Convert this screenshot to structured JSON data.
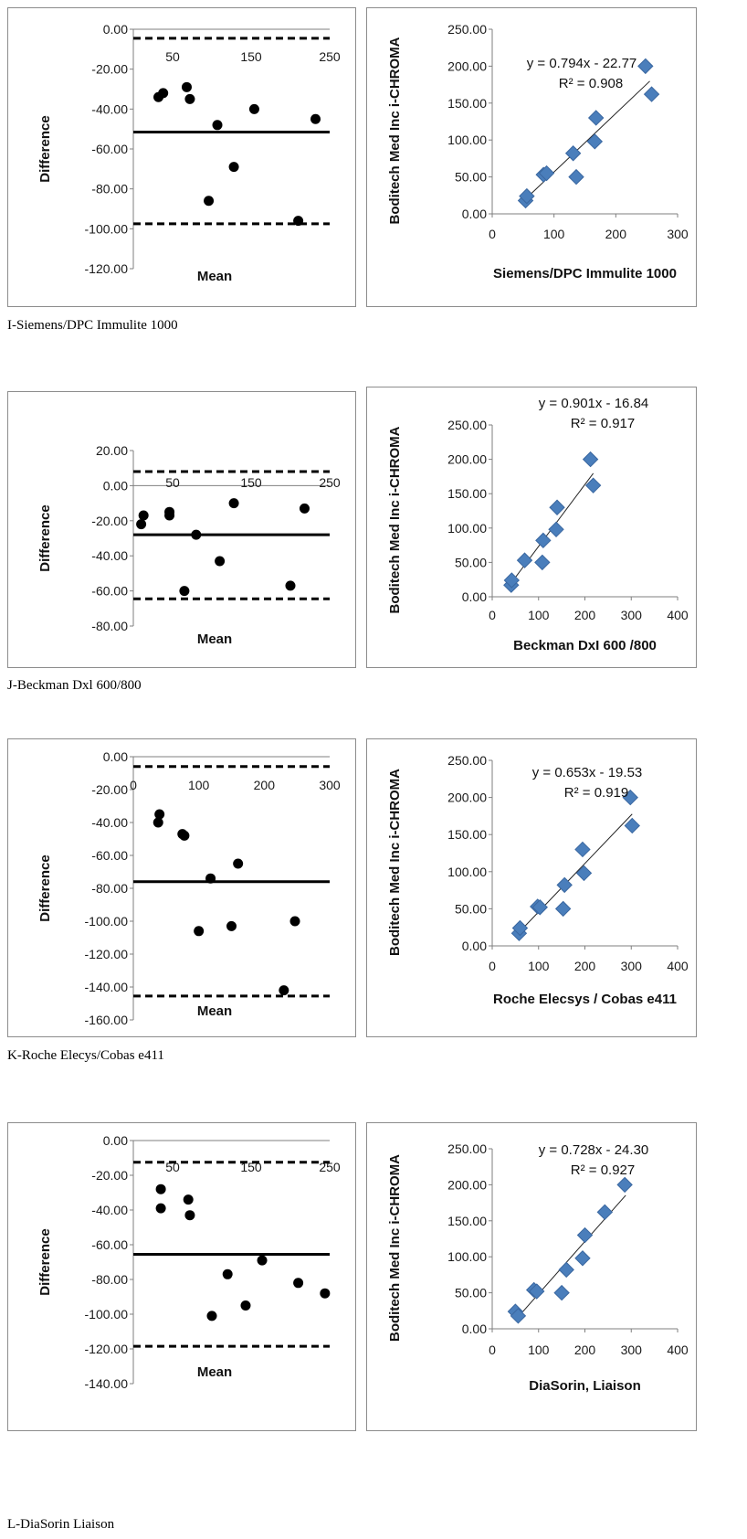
{
  "captions": [
    "I-Siemens/DPC Immulite 1000",
    "J-Beckman Dxl 600/800",
    "K-Roche Elecys/Cobas e411",
    "L-DiaSorin Liaison"
  ],
  "chart_data": [
    {
      "type": "scatter",
      "role": "bland-altman",
      "xlabel": "Mean",
      "ylabel": "Difference",
      "xlim": [
        0,
        250
      ],
      "ylim": [
        -120,
        0
      ],
      "xticks": [
        "50",
        "150",
        "250"
      ],
      "xtick_values": [
        50,
        150,
        250
      ],
      "yticks": [
        "0.00",
        "-20.00",
        "-40.00",
        "-60.00",
        "-80.00",
        "-100.00",
        "-120.00"
      ],
      "ytick_values": [
        0,
        -20,
        -40,
        -60,
        -80,
        -100,
        -120
      ],
      "bias": -51.5,
      "upper_loa": -4.5,
      "lower_loa": -97.5,
      "points": [
        [
          32,
          -34
        ],
        [
          38,
          -32
        ],
        [
          68,
          -29
        ],
        [
          72,
          -35
        ],
        [
          107,
          -48
        ],
        [
          96,
          -86
        ],
        [
          128,
          -69
        ],
        [
          154,
          -40
        ],
        [
          210,
          -96
        ],
        [
          232,
          -45
        ]
      ]
    },
    {
      "type": "scatter",
      "role": "regression",
      "xlabel": "Siemens/DPC Immulite 1000",
      "ylabel": "Boditech Med Inc i-CHROMA",
      "xlim": [
        0,
        300
      ],
      "ylim": [
        0,
        250
      ],
      "xticks": [
        "0",
        "100",
        "200",
        "300"
      ],
      "xtick_values": [
        0,
        100,
        200,
        300
      ],
      "yticks": [
        "0.00",
        "50.00",
        "100.00",
        "150.00",
        "200.00",
        "250.00"
      ],
      "ytick_values": [
        0,
        50,
        100,
        150,
        200,
        250
      ],
      "equation": "y = 0.794x - 22.77",
      "r2": "R² = 0.908",
      "fit": {
        "slope": 0.794,
        "intercept": -22.77,
        "x_range": [
          52,
          255
        ]
      },
      "points": [
        [
          54,
          18
        ],
        [
          56,
          24
        ],
        [
          83,
          53
        ],
        [
          88,
          55
        ],
        [
          136,
          50
        ],
        [
          131,
          82
        ],
        [
          166,
          98
        ],
        [
          168,
          130
        ],
        [
          248,
          200
        ],
        [
          258,
          162
        ]
      ]
    },
    {
      "type": "scatter",
      "role": "bland-altman",
      "xlabel": "Mean",
      "ylabel": "Difference",
      "xlim": [
        0,
        250
      ],
      "ylim": [
        -80,
        20
      ],
      "xticks": [
        "50",
        "150",
        "250"
      ],
      "xtick_values": [
        50,
        150,
        250
      ],
      "yticks": [
        "20.00",
        "0.00",
        "-20.00",
        "-40.00",
        "-60.00",
        "-80.00"
      ],
      "ytick_values": [
        20,
        0,
        -20,
        -40,
        -60,
        -80
      ],
      "bias": -28,
      "upper_loa": 8,
      "lower_loa": -64.5,
      "points": [
        [
          10,
          -22
        ],
        [
          13,
          -17
        ],
        [
          46,
          -17
        ],
        [
          46,
          -15
        ],
        [
          65,
          -60
        ],
        [
          80,
          -28
        ],
        [
          110,
          -43
        ],
        [
          128,
          -10
        ],
        [
          200,
          -57
        ],
        [
          218,
          -13
        ]
      ]
    },
    {
      "type": "scatter",
      "role": "regression",
      "xlabel": "Beckman DxI 600 /800",
      "ylabel": "Boditech Med Inc i-CHROMA",
      "xlim": [
        0,
        400
      ],
      "ylim": [
        0,
        250
      ],
      "xticks": [
        "0",
        "100",
        "200",
        "300",
        "400"
      ],
      "xtick_values": [
        0,
        100,
        200,
        300,
        400
      ],
      "yticks": [
        "0.00",
        "50.00",
        "100.00",
        "150.00",
        "200.00",
        "250.00"
      ],
      "ytick_values": [
        0,
        50,
        100,
        150,
        200,
        250
      ],
      "equation": "y = 0.901x - 16.84",
      "r2": "R² = 0.917",
      "fit": {
        "slope": 0.901,
        "intercept": -16.84,
        "x_range": [
          38,
          218
        ]
      },
      "points": [
        [
          41,
          17
        ],
        [
          42,
          24
        ],
        [
          70,
          53
        ],
        [
          108,
          50
        ],
        [
          110,
          82
        ],
        [
          138,
          98
        ],
        [
          140,
          130
        ],
        [
          212,
          200
        ],
        [
          218,
          162
        ]
      ]
    },
    {
      "type": "scatter",
      "role": "bland-altman",
      "xlabel": "Mean",
      "ylabel": "Difference",
      "xlim": [
        0,
        300
      ],
      "ylim": [
        -160,
        0
      ],
      "xticks": [
        "0",
        "100",
        "200",
        "300"
      ],
      "xtick_values": [
        0,
        100,
        200,
        300
      ],
      "yticks": [
        "0.00",
        "-20.00",
        "-40.00",
        "-60.00",
        "-80.00",
        "-100.00",
        "-120.00",
        "-140.00",
        "-160.00"
      ],
      "ytick_values": [
        0,
        -20,
        -40,
        -60,
        -80,
        -100,
        -120,
        -140,
        -160
      ],
      "bias": -76,
      "upper_loa": -6,
      "lower_loa": -145.5,
      "points": [
        [
          38,
          -40
        ],
        [
          40,
          -35
        ],
        [
          75,
          -47
        ],
        [
          78,
          -48
        ],
        [
          100,
          -106
        ],
        [
          118,
          -74
        ],
        [
          150,
          -103
        ],
        [
          160,
          -65
        ],
        [
          230,
          -142
        ],
        [
          247,
          -100
        ]
      ]
    },
    {
      "type": "scatter",
      "role": "regression",
      "xlabel": "Roche Elecsys / Cobas e411",
      "ylabel": "Boditech Med Inc i-CHROMA",
      "xlim": [
        0,
        400
      ],
      "ylim": [
        0,
        250
      ],
      "xticks": [
        "0",
        "100",
        "200",
        "300",
        "400"
      ],
      "xtick_values": [
        0,
        100,
        200,
        300,
        400
      ],
      "yticks": [
        "0.00",
        "50.00",
        "100.00",
        "150.00",
        "200.00",
        "250.00"
      ],
      "ytick_values": [
        0,
        50,
        100,
        150,
        200,
        250
      ],
      "equation": "y = 0.653x - 19.53",
      "r2": "R² = 0.919",
      "fit": {
        "slope": 0.653,
        "intercept": -19.53,
        "x_range": [
          57,
          302
        ]
      },
      "points": [
        [
          58,
          17
        ],
        [
          60,
          24
        ],
        [
          98,
          53
        ],
        [
          103,
          52
        ],
        [
          153,
          50
        ],
        [
          156,
          82
        ],
        [
          195,
          130
        ],
        [
          198,
          98
        ],
        [
          298,
          200
        ],
        [
          302,
          162
        ]
      ]
    },
    {
      "type": "scatter",
      "role": "bland-altman",
      "xlabel": "Mean",
      "ylabel": "Difference",
      "xlim": [
        0,
        250
      ],
      "ylim": [
        -140,
        0
      ],
      "xticks": [
        "50",
        "150",
        "250"
      ],
      "xtick_values": [
        50,
        150,
        250
      ],
      "yticks": [
        "0.00",
        "-20.00",
        "-40.00",
        "-60.00",
        "-80.00",
        "-100.00",
        "-120.00",
        "-140.00"
      ],
      "ytick_values": [
        0,
        -20,
        -40,
        -60,
        -80,
        -100,
        -120,
        -140
      ],
      "bias": -65.5,
      "upper_loa": -12.5,
      "lower_loa": -118.5,
      "points": [
        [
          35,
          -28
        ],
        [
          35,
          -39
        ],
        [
          70,
          -34
        ],
        [
          72,
          -43
        ],
        [
          100,
          -101
        ],
        [
          120,
          -77
        ],
        [
          143,
          -95
        ],
        [
          164,
          -69
        ],
        [
          210,
          -82
        ],
        [
          244,
          -88
        ]
      ]
    },
    {
      "type": "scatter",
      "role": "regression",
      "xlabel": "DiaSorin, Liaison",
      "ylabel": "Boditech Med Inc i-CHROMA",
      "xlim": [
        0,
        400
      ],
      "ylim": [
        0,
        250
      ],
      "xticks": [
        "0",
        "100",
        "200",
        "300",
        "400"
      ],
      "xtick_values": [
        0,
        100,
        200,
        300,
        400
      ],
      "yticks": [
        "0.00",
        "50.00",
        "100.00",
        "150.00",
        "200.00",
        "250.00"
      ],
      "ytick_values": [
        0,
        50,
        100,
        150,
        200,
        250
      ],
      "equation": "y = 0.728x - 24.30",
      "r2": "R² = 0.927",
      "fit": {
        "slope": 0.728,
        "intercept": -24.3,
        "x_range": [
          52,
          288
        ]
      },
      "points": [
        [
          50,
          24
        ],
        [
          56,
          18
        ],
        [
          90,
          54
        ],
        [
          96,
          52
        ],
        [
          150,
          50
        ],
        [
          160,
          82
        ],
        [
          195,
          98
        ],
        [
          200,
          130
        ],
        [
          243,
          162
        ],
        [
          286,
          200
        ]
      ]
    }
  ]
}
